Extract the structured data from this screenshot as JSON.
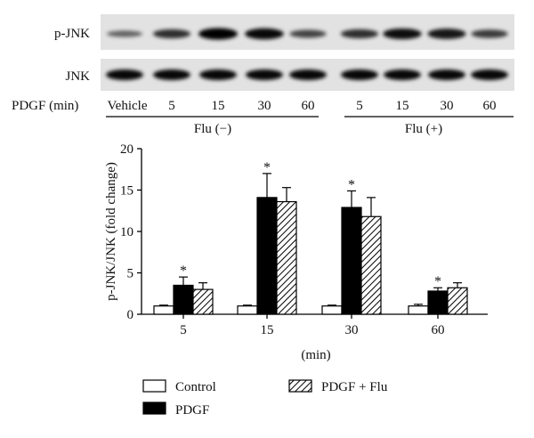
{
  "blot": {
    "row_labels": [
      "p-JNK",
      "JNK"
    ],
    "treatment_label": "PDGF (min)",
    "lane_labels": [
      "Vehicle",
      "5",
      "15",
      "30",
      "60",
      "5",
      "15",
      "30",
      "60"
    ],
    "groups": [
      {
        "label": "Flu (−)",
        "lanes": [
          0,
          4
        ]
      },
      {
        "label": "Flu (+)",
        "lanes": [
          5,
          8
        ]
      }
    ],
    "pjnk_band_intensity": [
      0.35,
      0.7,
      1.0,
      0.95,
      0.55,
      0.7,
      0.9,
      0.85,
      0.6
    ],
    "jnk_band_intensity": [
      0.95,
      0.95,
      0.95,
      0.95,
      0.95,
      0.95,
      0.95,
      0.95,
      0.95
    ]
  },
  "chart_data": {
    "type": "bar",
    "categories": [
      "5",
      "15",
      "30",
      "60"
    ],
    "xlabel": "(min)",
    "ylabel": "p-JNK/JNK (fold change)",
    "ylim": [
      0,
      20
    ],
    "yticks": [
      "0",
      "5",
      "10",
      "15",
      "20"
    ],
    "grid": false,
    "legend_position": "bottom",
    "series": [
      {
        "name": "Control",
        "values": [
          1.0,
          1.0,
          1.0,
          1.0
        ],
        "errors": [
          0.1,
          0.1,
          0.1,
          0.2
        ],
        "fill": "white"
      },
      {
        "name": "PDGF",
        "values": [
          3.5,
          14.1,
          12.9,
          2.8
        ],
        "errors": [
          1.0,
          2.9,
          2.0,
          0.4
        ],
        "fill": "black"
      },
      {
        "name": "PDGF + Flu",
        "values": [
          3.0,
          13.6,
          11.8,
          3.2
        ],
        "errors": [
          0.8,
          1.7,
          2.3,
          0.6
        ],
        "fill": "hatch"
      }
    ],
    "annotations": [
      {
        "text": "*",
        "series": "PDGF",
        "category": "5"
      },
      {
        "text": "*",
        "series": "PDGF",
        "category": "15"
      },
      {
        "text": "*",
        "series": "PDGF",
        "category": "30"
      },
      {
        "text": "*",
        "series": "PDGF",
        "category": "60"
      }
    ]
  }
}
